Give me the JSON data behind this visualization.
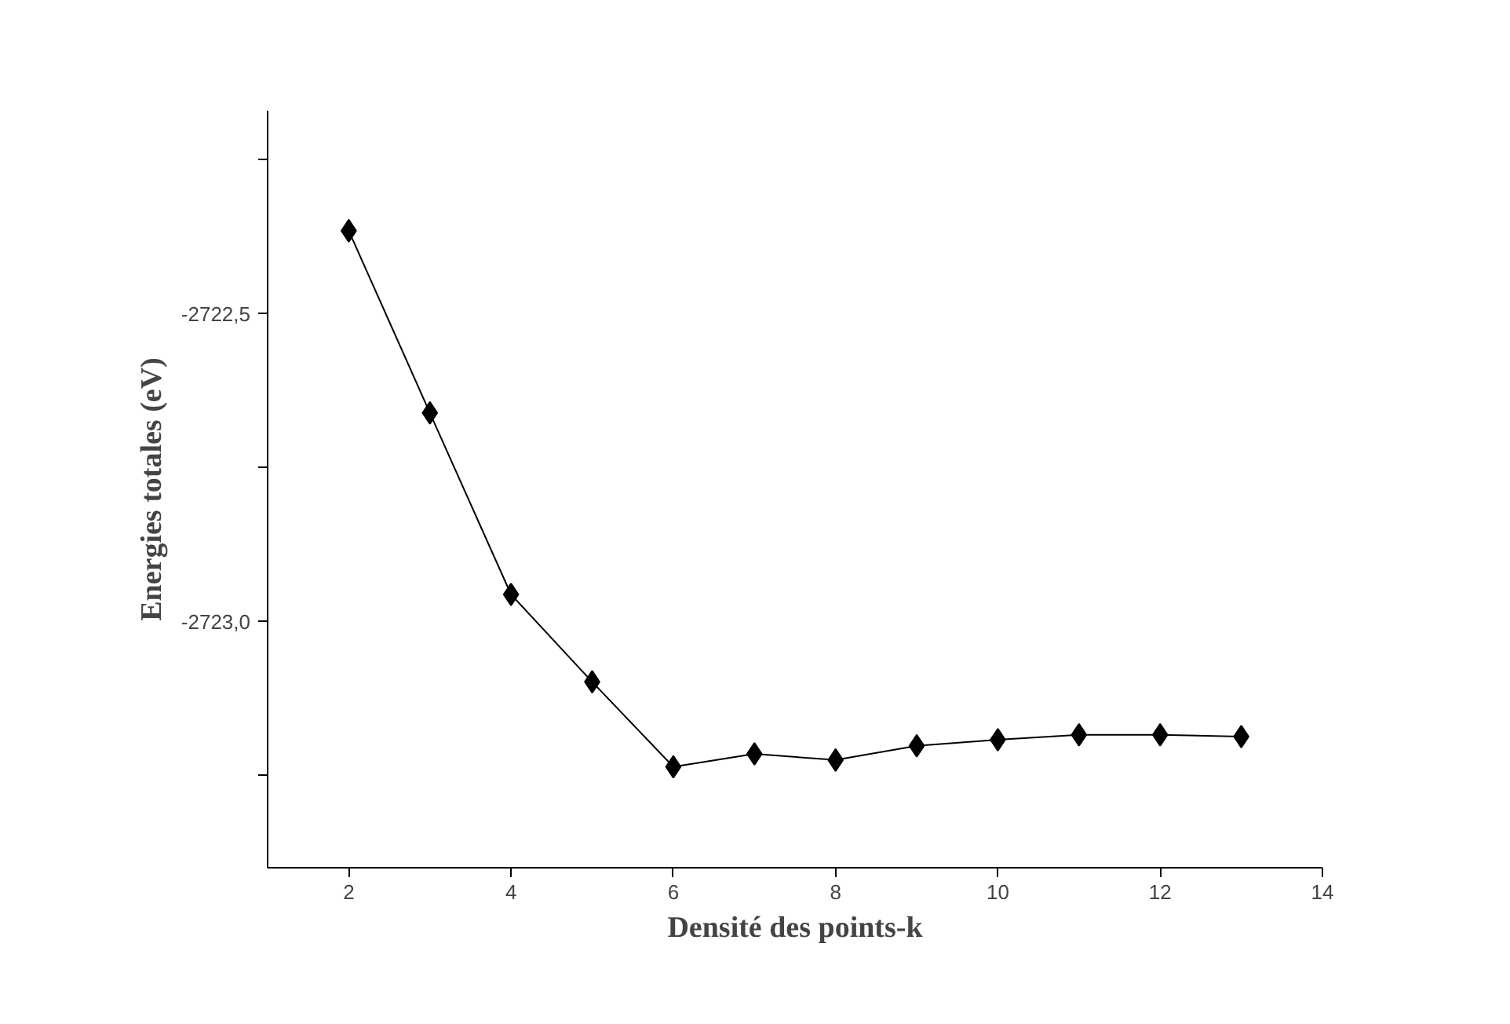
{
  "chart_data": {
    "type": "line",
    "xlabel": "Densité des points-k",
    "ylabel": "Energies totales (eV)",
    "x": [
      2,
      3,
      4,
      5,
      6,
      7,
      8,
      9,
      10,
      11,
      12,
      13
    ],
    "series": [
      {
        "color": "#000000",
        "values": [
          -2722.365,
          -2722.661,
          -2722.956,
          -2723.098,
          -2723.236,
          -2723.215,
          -2723.225,
          -2723.202,
          -2723.192,
          -2723.184,
          -2723.184,
          -2723.187
        ]
      }
    ],
    "xlim": [
      1,
      14
    ],
    "xticks": [
      2,
      4,
      6,
      8,
      10,
      12,
      14
    ],
    "ylim": [
      -2723.4,
      -2722.17
    ],
    "yticks": [
      {
        "value": -2722.25,
        "label": null
      },
      {
        "value": -2722.5,
        "label": "-2722,5"
      },
      {
        "value": -2722.75,
        "label": null
      },
      {
        "value": -2723.0,
        "label": "-2723,0"
      },
      {
        "value": -2723.25,
        "label": null
      }
    ],
    "marker": "diamond",
    "line_style": "solid"
  }
}
